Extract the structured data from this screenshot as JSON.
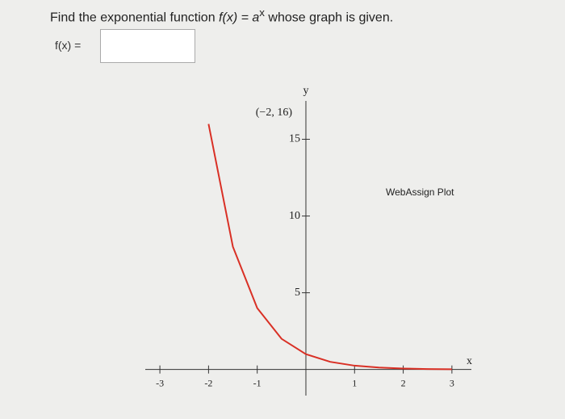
{
  "question": {
    "prefix": "Find the exponential function",
    "function": "f(x) = a",
    "exponent": "x",
    "suffix": "whose graph is given."
  },
  "answer_label": "f(x) =",
  "chart_data": {
    "type": "line",
    "x_label": "x",
    "y_label": "y",
    "annotation": "(−2, 16)",
    "plot_label": "WebAssign Plot",
    "x": [
      -2,
      -1.5,
      -1,
      -0.5,
      0,
      0.5,
      1,
      1.5,
      2,
      2.5,
      3
    ],
    "series": [
      {
        "color": "#d93025",
        "values": [
          16,
          8,
          4,
          2,
          1,
          0.5,
          0.25,
          0.125,
          0.0625,
          0.03125,
          0.015625
        ]
      }
    ],
    "xlim": [
      -3.3,
      3.4
    ],
    "ylim": [
      -1.7,
      17.5
    ],
    "xticks": [
      -3,
      -2,
      -1,
      1,
      2,
      3
    ],
    "yticks": [
      5,
      10,
      15
    ]
  }
}
